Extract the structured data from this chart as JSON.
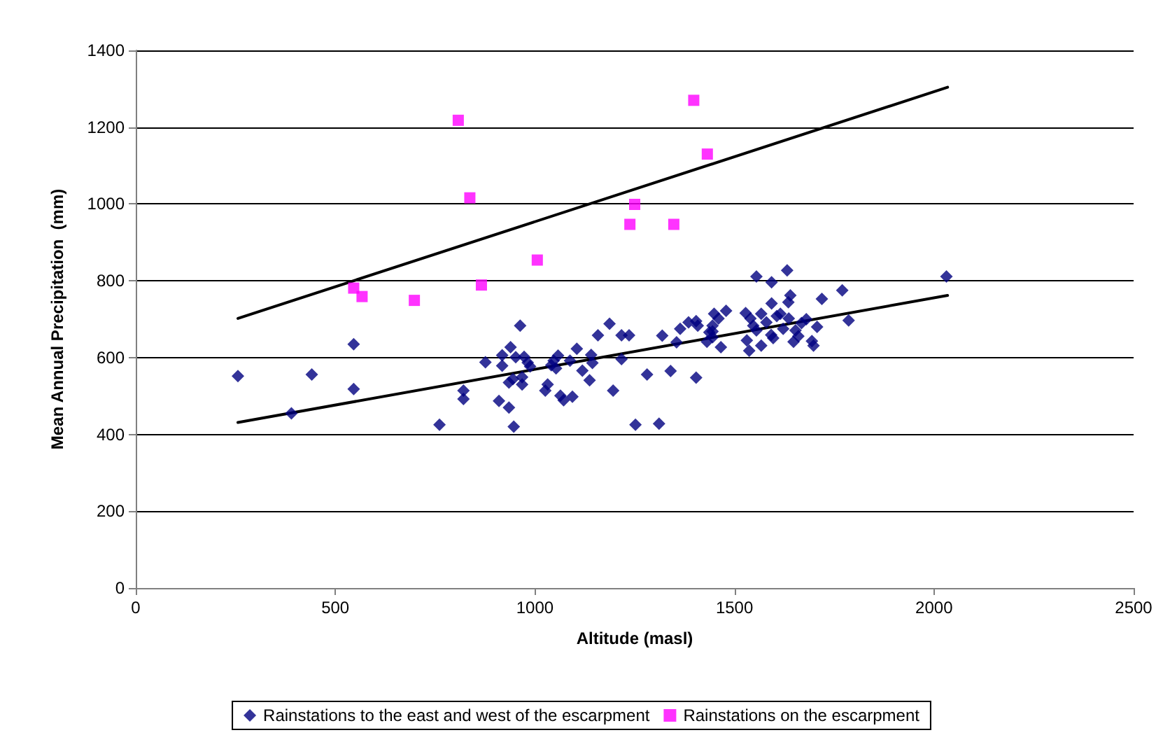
{
  "chart_data": {
    "type": "scatter",
    "xlabel": "Altitude (masl)",
    "ylabel": "Mean Annual Precipitation  (mm)",
    "xlim": [
      0,
      2500
    ],
    "xticks": [
      0,
      500,
      1000,
      1500,
      2000,
      2500
    ],
    "ylim": [
      0,
      1400
    ],
    "yticks": [
      0,
      200,
      400,
      600,
      800,
      1000,
      1200,
      1400
    ],
    "grid": "y",
    "legend": "bottom",
    "series": [
      {
        "name": "Rainstations to the east and west of the escarpment",
        "color": "#000080",
        "marker": "diamond",
        "x": [
          256,
          390,
          441,
          546,
          546,
          761,
          821,
          821,
          876,
          910,
          918,
          918,
          935,
          939,
          947,
          935,
          945,
          952,
          963,
          968,
          968,
          973,
          982,
          988,
          1026,
          1032,
          1041,
          1047,
          1053,
          1058,
          1064,
          1072,
          1094,
          1088,
          1105,
          1119,
          1137,
          1141,
          1144,
          1158,
          1187,
          1196,
          1217,
          1217,
          1236,
          1252,
          1281,
          1311,
          1319,
          1340,
          1355,
          1364,
          1385,
          1404,
          1404,
          1408,
          1431,
          1437,
          1445,
          1445,
          1445,
          1449,
          1460,
          1466,
          1479,
          1528,
          1531,
          1537,
          1540,
          1547,
          1555,
          1555,
          1567,
          1567,
          1580,
          1592,
          1593,
          1593,
          1597,
          1606,
          1615,
          1622,
          1632,
          1635,
          1636,
          1640,
          1648,
          1653,
          1660,
          1668,
          1680,
          1694,
          1698,
          1707,
          1719,
          1770,
          1786,
          2031
        ],
        "values": [
          552,
          455,
          556,
          635,
          518,
          425,
          514,
          492,
          588,
          487,
          606,
          579,
          470,
          627,
          420,
          535,
          544,
          601,
          683,
          549,
          530,
          602,
          587,
          577,
          514,
          530,
          580,
          592,
          572,
          605,
          501,
          489,
          498,
          592,
          623,
          566,
          541,
          607,
          586,
          658,
          688,
          514,
          658,
          596,
          658,
          425,
          556,
          428,
          657,
          565,
          640,
          675,
          692,
          695,
          548,
          683,
          641,
          666,
          683,
          668,
          653,
          714,
          702,
          627,
          722,
          716,
          645,
          618,
          702,
          683,
          811,
          671,
          714,
          631,
          692,
          659,
          796,
          741,
          651,
          708,
          714,
          675,
          827,
          744,
          702,
          762,
          641,
          671,
          656,
          690,
          700,
          643,
          631,
          680,
          753,
          775,
          697,
          811
        ]
      },
      {
        "name": "Rainstations on the escarpment",
        "color": "#ff00ff",
        "marker": "square",
        "x": [
          546,
          567,
          698,
          808,
          837,
          866,
          1006,
          1238,
          1250,
          1348,
          1398,
          1432
        ],
        "values": [
          781,
          759,
          749,
          1218,
          1016,
          789,
          854,
          947,
          999,
          947,
          1270,
          1130
        ]
      },
      {
        "type": "line",
        "color": "#000000",
        "marker": "none",
        "line_style": "solid",
        "x": [
          256,
          2034
        ],
        "values": [
          431,
          762
        ]
      },
      {
        "type": "line",
        "color": "#000000",
        "marker": "none",
        "line_style": "solid",
        "x": [
          256,
          2034
        ],
        "values": [
          702,
          1304
        ]
      }
    ]
  }
}
